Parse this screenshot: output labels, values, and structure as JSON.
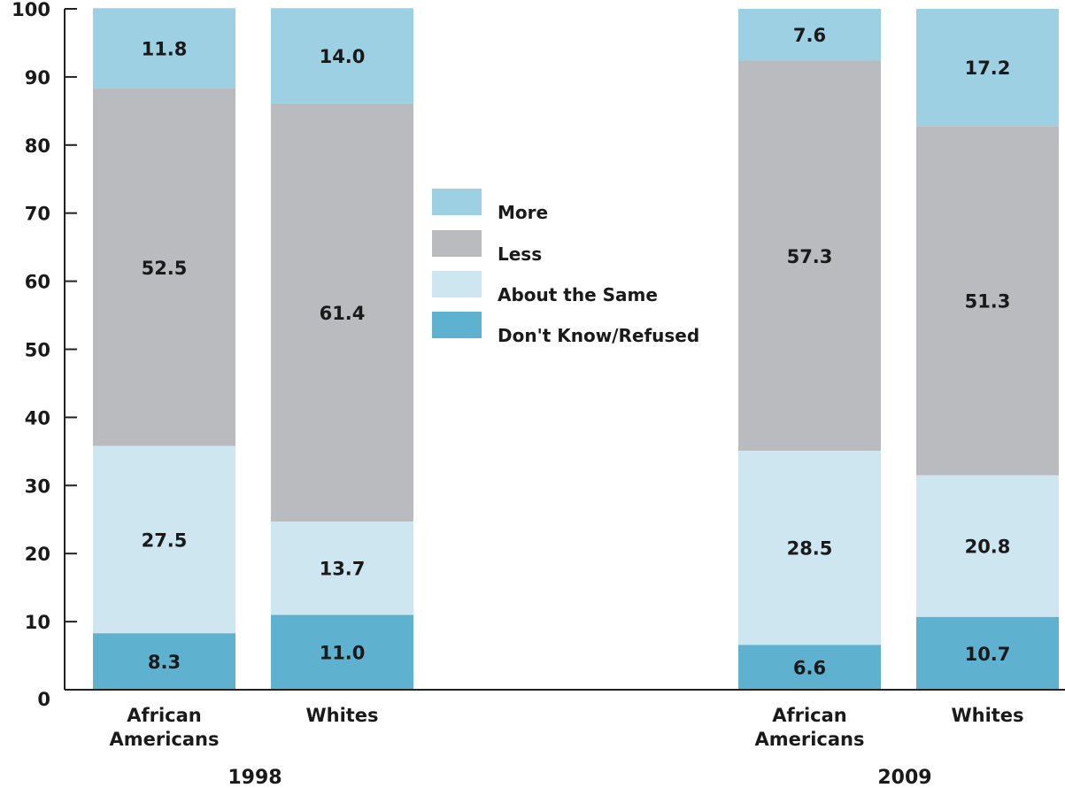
{
  "chart_data": {
    "type": "bar",
    "stacked": true,
    "ylim": [
      0,
      100
    ],
    "yticks": [
      "0",
      "10",
      "20",
      "30",
      "40",
      "50",
      "60",
      "70",
      "80",
      "90",
      "100"
    ],
    "groups": [
      {
        "label": "1998",
        "categories": [
          "African Americans",
          "Whites"
        ]
      },
      {
        "label": "2009",
        "categories": [
          "African Americans",
          "Whites"
        ]
      }
    ],
    "categories": [
      {
        "line1": "African",
        "line2": "Americans",
        "group": "1998"
      },
      {
        "line1": "Whites",
        "line2": "",
        "group": "1998"
      },
      {
        "line1": "African",
        "line2": "Americans",
        "group": "2009"
      },
      {
        "line1": "Whites",
        "line2": "",
        "group": "2009"
      }
    ],
    "series": [
      {
        "name": "Don't Know/Refused",
        "color": "#5fb2cf",
        "values": [
          8.3,
          11.0,
          6.6,
          10.7
        ],
        "labels": [
          "8.3",
          "11.0",
          "6.6",
          "10.7"
        ]
      },
      {
        "name": "About the Same",
        "color": "#cde6f0",
        "values": [
          27.5,
          13.7,
          28.5,
          20.8
        ],
        "labels": [
          "27.5",
          "13.7",
          "28.5",
          "20.8"
        ]
      },
      {
        "name": "Less",
        "color": "#babbbf",
        "values": [
          52.5,
          61.4,
          57.3,
          51.3
        ],
        "labels": [
          "52.5",
          "61.4",
          "57.3",
          "51.3"
        ]
      },
      {
        "name": "More",
        "color": "#9ed0e3",
        "values": [
          11.8,
          14.0,
          7.6,
          17.2
        ],
        "labels": [
          "11.8",
          "14.0",
          "7.6",
          "17.2"
        ]
      }
    ],
    "legend": {
      "placement": "center",
      "order": [
        "More",
        "Less",
        "About the Same",
        "Don't Know/Refused"
      ]
    },
    "grid": false
  }
}
